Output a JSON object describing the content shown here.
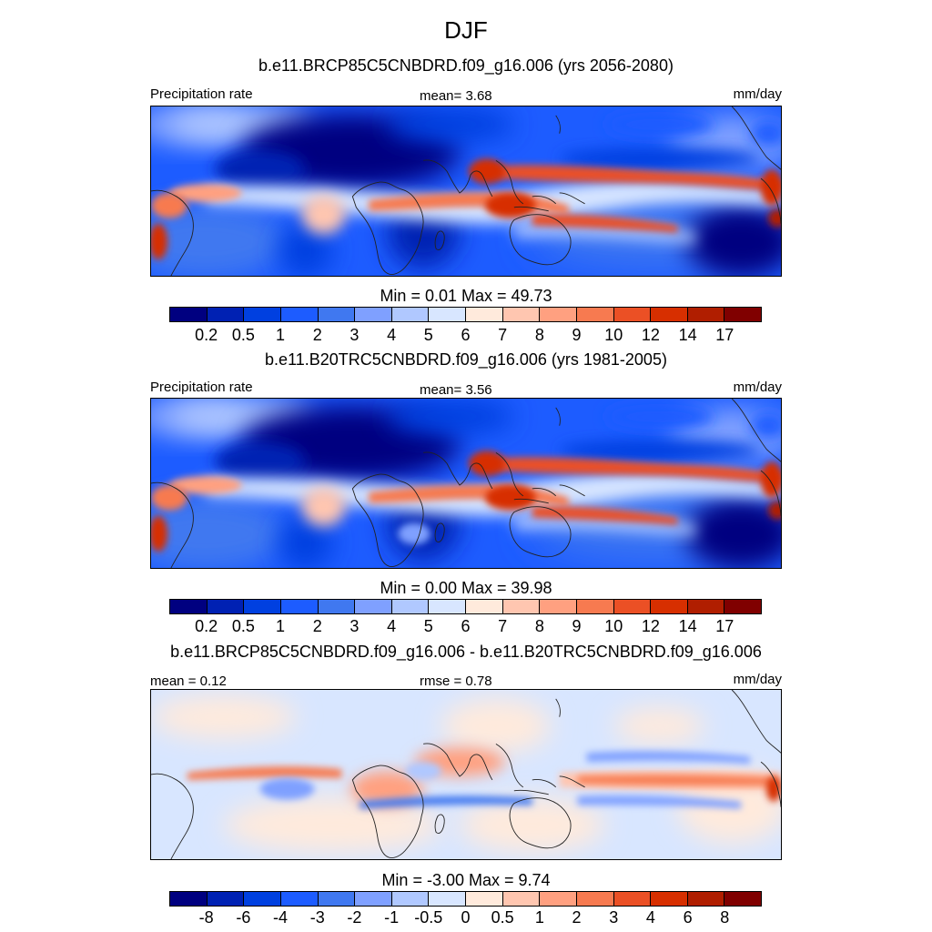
{
  "chart_data": {
    "type": "heatmap",
    "title": "DJF",
    "palette": [
      "#000080",
      "#0021b3",
      "#0040e0",
      "#1d5cff",
      "#4078f0",
      "#7fa0ff",
      "#b0c8ff",
      "#d8e6ff",
      "#ffeadc",
      "#ffc6b0",
      "#ffa080",
      "#f77a50",
      "#eb5025",
      "#d72f00",
      "#b01e00",
      "#800000"
    ],
    "panels": [
      {
        "title": "b.e11.BRCP85C5CNBDRD.f09_g16.006 (yrs 2056-2080)",
        "left_label": "Precipitation rate",
        "center_label": "mean=   3.68",
        "units": "mm/day",
        "min_max": "Min =   0.01 Max =  49.73",
        "colorbar_ticks": [
          "0.2",
          "0.5",
          "1",
          "2",
          "3",
          "4",
          "5",
          "6",
          "7",
          "8",
          "9",
          "10",
          "12",
          "14",
          "17"
        ],
        "kind": "absolute"
      },
      {
        "title": "b.e11.B20TRC5CNBDRD.f09_g16.006 (yrs 1981-2005)",
        "left_label": "Precipitation rate",
        "center_label": "mean=   3.56",
        "units": "mm/day",
        "min_max": "Min =   0.00 Max =  39.98",
        "colorbar_ticks": [
          "0.2",
          "0.5",
          "1",
          "2",
          "3",
          "4",
          "5",
          "6",
          "7",
          "8",
          "9",
          "10",
          "12",
          "14",
          "17"
        ],
        "kind": "absolute"
      },
      {
        "title": "b.e11.BRCP85C5CNBDRD.f09_g16.006 - b.e11.B20TRC5CNBDRD.f09_g16.006",
        "left_label": "mean =   0.12",
        "center_label": "rmse =   0.78",
        "units": "mm/day",
        "min_max": "Min =  -3.00 Max =   9.74",
        "colorbar_ticks": [
          "-8",
          "-6",
          "-4",
          "-3",
          "-2",
          "-1",
          "-0.5",
          "0",
          "0.5",
          "1",
          "2",
          "3",
          "4",
          "6",
          "8"
        ],
        "kind": "difference"
      }
    ]
  }
}
